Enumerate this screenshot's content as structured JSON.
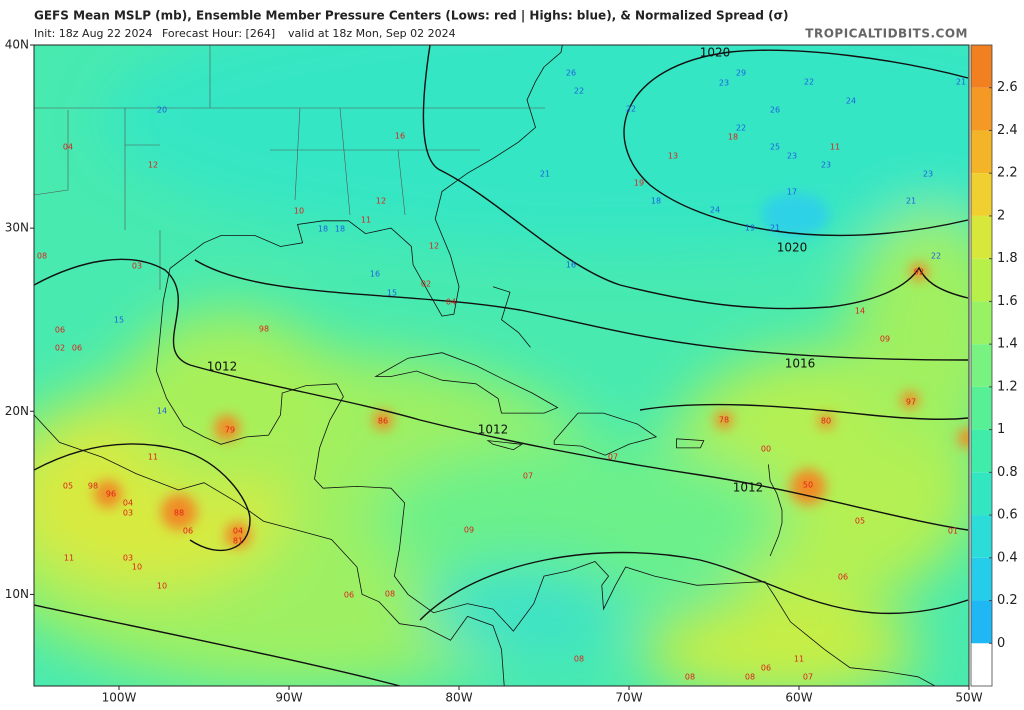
{
  "header": {
    "title": "GEFS Mean MSLP (mb), Ensemble Member Pressure Centers (Lows: red | Highs: blue), & Normalized Spread (σ)",
    "init": "Init: 18z Aug 22 2024",
    "forecast_hour": "Forecast Hour: [264]",
    "valid": "valid at 18z Mon, Sep 02 2024",
    "source": "TROPICALTIDBITS.COM"
  },
  "map": {
    "xlim": [
      -105,
      -50
    ],
    "ylim": [
      5,
      40
    ],
    "lon_ticks": [
      {
        "value": -100,
        "label": "100W"
      },
      {
        "value": -90,
        "label": "90W"
      },
      {
        "value": -80,
        "label": "80W"
      },
      {
        "value": -70,
        "label": "70W"
      },
      {
        "value": -60,
        "label": "60W"
      },
      {
        "value": -50,
        "label": "50W"
      }
    ],
    "lat_ticks": [
      {
        "value": 40,
        "label": "40N"
      },
      {
        "value": 30,
        "label": "30N"
      },
      {
        "value": 20,
        "label": "20N"
      },
      {
        "value": 10,
        "label": "10N"
      }
    ],
    "isobar_labels": [
      "1020",
      "1020",
      "1016",
      "1012",
      "1012",
      "1012"
    ],
    "low_color": "#e0201c",
    "high_color": "#1f5fe0",
    "lows": [
      "04",
      "12",
      "03",
      "08",
      "06",
      "06",
      "02",
      "98",
      "79",
      "86",
      "78",
      "80",
      "00",
      "97",
      "09",
      "14",
      "92",
      "19",
      "13",
      "18",
      "11",
      "16",
      "12",
      "11",
      "10",
      "12",
      "04",
      "02",
      "98",
      "96",
      "05",
      "04",
      "03",
      "88",
      "06",
      "04",
      "81",
      "11",
      "03",
      "10",
      "10",
      "11",
      "07",
      "09",
      "07",
      "50",
      "05",
      "01",
      "06",
      "06",
      "08",
      "08",
      "11",
      "06",
      "08",
      "07",
      "08"
    ],
    "highs": [
      "20",
      "22",
      "26",
      "29",
      "23",
      "22",
      "24",
      "22",
      "26",
      "22",
      "25",
      "23",
      "23",
      "21",
      "18",
      "24",
      "17",
      "19",
      "21",
      "21",
      "23",
      "22",
      "21",
      "18",
      "18",
      "16",
      "15",
      "16",
      "14",
      "15"
    ]
  },
  "colorbar": {
    "lim": [
      -0.2,
      2.8
    ],
    "ticks": [
      0,
      0.2,
      0.4,
      0.6,
      0.8,
      1,
      1.2,
      1.4,
      1.6,
      1.8,
      2,
      2.2,
      2.4,
      2.6
    ],
    "colors": [
      "#ffffff",
      "#1fb8f4",
      "#26cdea",
      "#2cdcd8",
      "#33e6c2",
      "#40ecaa",
      "#58f096",
      "#78f280",
      "#98f264",
      "#b8f04a",
      "#d8e83a",
      "#f0d030",
      "#f4b428",
      "#f49a24",
      "#f08020"
    ]
  }
}
